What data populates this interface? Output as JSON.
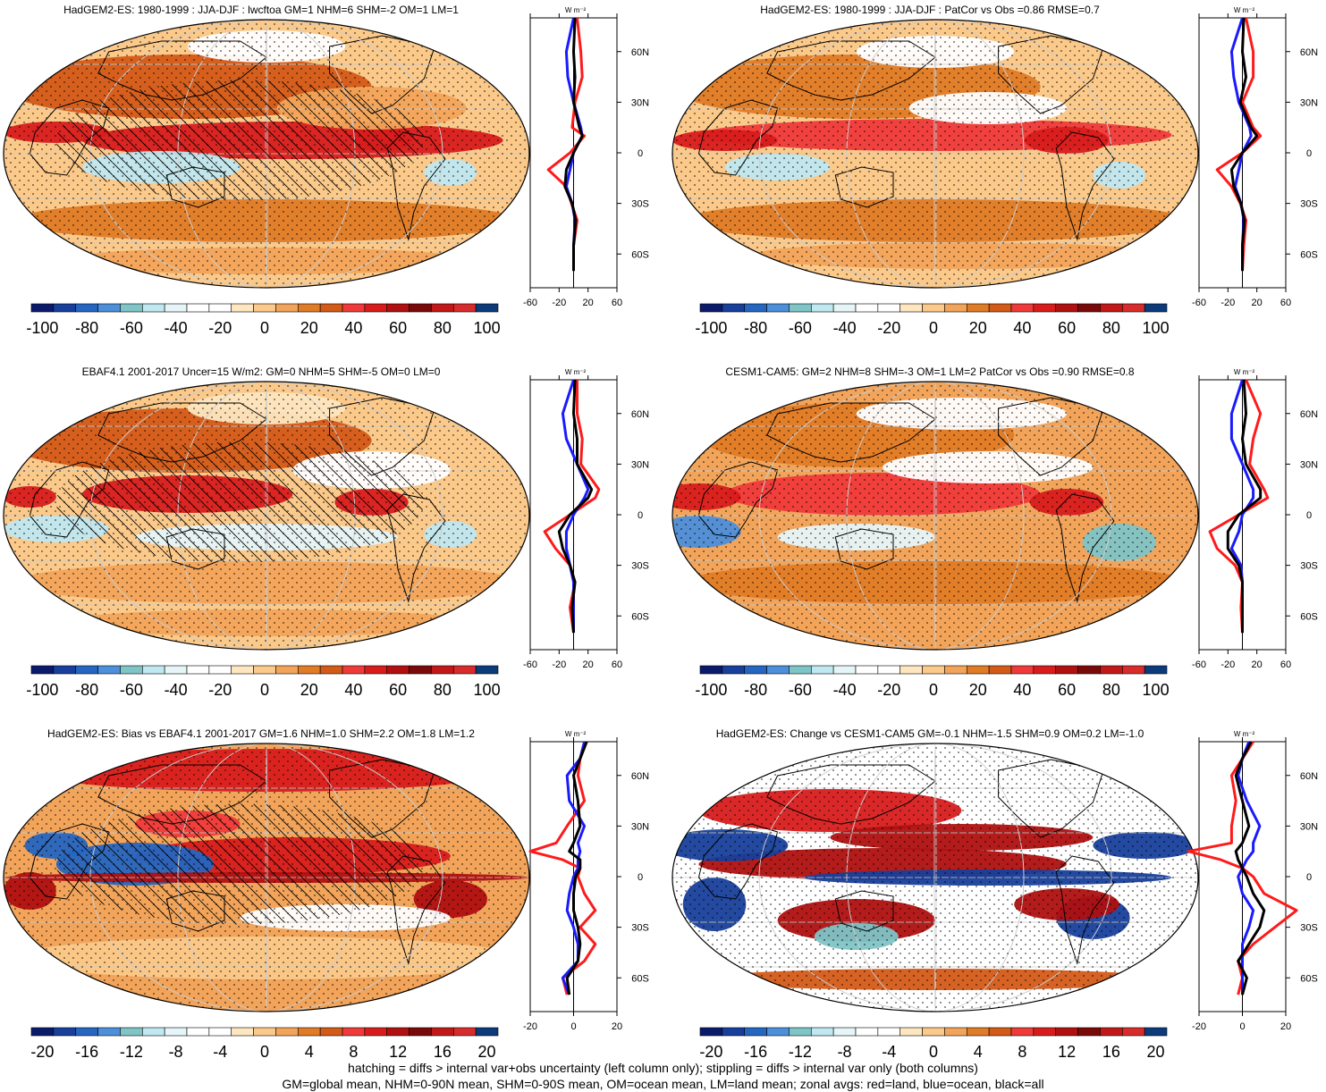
{
  "chart_data": [
    {
      "type": "heatmap",
      "title": "HadGEM2-ES: 1980-1999 : JJA-DJF : lwcftoa GM=1 NHM=6 SHM=-2 OM=1 LM=1",
      "colorbar_ticks": [
        "-100",
        "-80",
        "-60",
        "-40",
        "-20",
        "0",
        "20",
        "40",
        "60",
        "80",
        "100"
      ],
      "hatching": true,
      "zonal_avg": {
        "unit": "W m-2",
        "x_ticks": [
          "-60",
          "-20",
          "20",
          "60"
        ],
        "xlim": [
          -60,
          60
        ],
        "y_ticks": [
          "60N",
          "30N",
          "0",
          "30S",
          "60S"
        ],
        "series": [
          {
            "name": "red",
            "lat": [
              80,
              60,
              45,
              30,
              15,
              10,
              0,
              -10,
              -20,
              -30,
              -40,
              -55,
              -70
            ],
            "values": [
              5,
              10,
              12,
              2,
              -2,
              15,
              -5,
              -35,
              -10,
              -3,
              5,
              0,
              0
            ]
          },
          {
            "name": "blue",
            "lat": [
              80,
              60,
              45,
              30,
              15,
              10,
              0,
              -10,
              -20,
              -30,
              -40,
              -55,
              -70
            ],
            "values": [
              0,
              -10,
              -8,
              0,
              10,
              12,
              0,
              -5,
              -10,
              -2,
              2,
              0,
              0
            ]
          },
          {
            "name": "black",
            "lat": [
              80,
              60,
              45,
              30,
              15,
              10,
              0,
              -10,
              -20,
              -30,
              -40,
              -55,
              -70
            ],
            "values": [
              2,
              0,
              2,
              0,
              8,
              12,
              0,
              -10,
              -12,
              -2,
              3,
              0,
              0
            ]
          }
        ]
      }
    },
    {
      "type": "heatmap",
      "title": "HadGEM2-ES: 1980-1999 : JJA-DJF : PatCor vs Obs =0.86 RMSE=0.7",
      "colorbar_ticks": [
        "-100",
        "-80",
        "-60",
        "-40",
        "-20",
        "0",
        "20",
        "40",
        "60",
        "80",
        "100"
      ],
      "hatching": false,
      "zonal_avg": {
        "unit": "W m-2",
        "x_ticks": [
          "-60",
          "-20",
          "20",
          "60"
        ],
        "xlim": [
          -60,
          60
        ],
        "y_ticks": [
          "60N",
          "30N",
          "0",
          "30S",
          "60S"
        ],
        "series": [
          {
            "name": "red",
            "lat": [
              80,
              60,
              45,
              30,
              15,
              10,
              0,
              -10,
              -20,
              -30,
              -40,
              -55,
              -70
            ],
            "values": [
              5,
              15,
              15,
              0,
              15,
              25,
              0,
              -35,
              -15,
              -3,
              5,
              2,
              0
            ]
          },
          {
            "name": "blue",
            "lat": [
              80,
              60,
              45,
              30,
              15,
              10,
              0,
              -10,
              -20,
              -30,
              -40,
              -55,
              -70
            ],
            "values": [
              0,
              -15,
              -12,
              -5,
              10,
              12,
              0,
              -5,
              -10,
              -2,
              2,
              0,
              0
            ]
          },
          {
            "name": "black",
            "lat": [
              80,
              60,
              45,
              30,
              15,
              10,
              0,
              -10,
              -20,
              -30,
              -40,
              -55,
              -70
            ],
            "values": [
              2,
              0,
              5,
              -3,
              12,
              20,
              0,
              -15,
              -12,
              -2,
              3,
              0,
              0
            ]
          }
        ]
      }
    },
    {
      "type": "heatmap",
      "title": "EBAF4.1 2001-2017 Uncer=15 W/m2: GM=0 NHM=5 SHM=-5 OM=0 LM=0",
      "colorbar_ticks": [
        "-100",
        "-80",
        "-60",
        "-40",
        "-20",
        "0",
        "20",
        "40",
        "60",
        "80",
        "100"
      ],
      "hatching": true,
      "zonal_avg": {
        "unit": "W m-2",
        "x_ticks": [
          "-60",
          "-20",
          "20",
          "60"
        ],
        "xlim": [
          -60,
          60
        ],
        "y_ticks": [
          "60N",
          "30N",
          "0",
          "30S",
          "60S"
        ],
        "series": [
          {
            "name": "red",
            "lat": [
              80,
              60,
              45,
              30,
              15,
              10,
              0,
              -10,
              -20,
              -30,
              -40,
              -55,
              -70
            ],
            "values": [
              5,
              5,
              12,
              10,
              35,
              30,
              -5,
              -40,
              -25,
              -5,
              2,
              -5,
              0
            ]
          },
          {
            "name": "blue",
            "lat": [
              80,
              60,
              45,
              30,
              15,
              10,
              0,
              -10,
              -20,
              -30,
              -40,
              -55,
              -70
            ],
            "values": [
              0,
              -15,
              -10,
              5,
              20,
              15,
              0,
              -10,
              -10,
              -5,
              0,
              0,
              0
            ]
          },
          {
            "name": "black",
            "lat": [
              80,
              60,
              45,
              30,
              15,
              10,
              0,
              -10,
              -20,
              -30,
              -40,
              -55,
              -70
            ],
            "values": [
              2,
              0,
              5,
              5,
              25,
              20,
              -5,
              -20,
              -15,
              -5,
              2,
              -2,
              0
            ]
          }
        ]
      }
    },
    {
      "type": "heatmap",
      "title": "CESM1-CAM5: GM=2 NHM=8 SHM=-3 OM=1 LM=2 PatCor vs Obs =0.90 RMSE=0.8",
      "colorbar_ticks": [
        "-100",
        "-80",
        "-60",
        "-40",
        "-20",
        "0",
        "20",
        "40",
        "60",
        "80",
        "100"
      ],
      "hatching": false,
      "zonal_avg": {
        "unit": "W m-2",
        "x_ticks": [
          "-60",
          "-20",
          "20",
          "60"
        ],
        "xlim": [
          -60,
          60
        ],
        "y_ticks": [
          "60N",
          "30N",
          "0",
          "30S",
          "60S"
        ],
        "series": [
          {
            "name": "red",
            "lat": [
              80,
              60,
              45,
              30,
              15,
              10,
              0,
              -10,
              -20,
              -30,
              -40,
              -55,
              -70
            ],
            "values": [
              5,
              25,
              15,
              10,
              30,
              35,
              -5,
              -45,
              -35,
              -10,
              0,
              -2,
              0
            ]
          },
          {
            "name": "blue",
            "lat": [
              80,
              60,
              45,
              30,
              15,
              10,
              0,
              -10,
              -20,
              -30,
              -40,
              -55,
              -70
            ],
            "values": [
              0,
              -15,
              -15,
              0,
              15,
              15,
              0,
              -5,
              -15,
              -2,
              0,
              0,
              0
            ]
          },
          {
            "name": "black",
            "lat": [
              80,
              60,
              45,
              30,
              15,
              10,
              0,
              -10,
              -20,
              -30,
              -40,
              -55,
              -70
            ],
            "values": [
              2,
              5,
              0,
              5,
              25,
              25,
              -5,
              -20,
              -20,
              -5,
              0,
              0,
              0
            ]
          }
        ]
      }
    },
    {
      "type": "heatmap",
      "title": "HadGEM2-ES: Bias vs EBAF4.1 2001-2017 GM=1.6 NHM=1.0 SHM=2.2 OM=1.8 LM=1.2",
      "colorbar_ticks": [
        "-20",
        "-16",
        "-12",
        "-8",
        "-4",
        "0",
        "4",
        "8",
        "12",
        "16",
        "20"
      ],
      "hatching": true,
      "zonal_avg": {
        "unit": "W m-2",
        "x_ticks": [
          "-20",
          "0",
          "20"
        ],
        "xlim": [
          -20,
          20
        ],
        "y_ticks": [
          "60N",
          "30N",
          "0",
          "30S",
          "60S"
        ],
        "series": [
          {
            "name": "red",
            "lat": [
              80,
              70,
              60,
              45,
              30,
              20,
              15,
              10,
              5,
              0,
              -10,
              -20,
              -30,
              -40,
              -50,
              -60,
              -70
            ],
            "values": [
              6,
              3,
              2,
              5,
              -3,
              -8,
              -20,
              -5,
              3,
              2,
              5,
              10,
              3,
              10,
              5,
              -5,
              -3
            ]
          },
          {
            "name": "blue",
            "lat": [
              80,
              70,
              60,
              45,
              30,
              20,
              15,
              10,
              5,
              0,
              -10,
              -20,
              -30,
              -40,
              -50,
              -60,
              -70
            ],
            "values": [
              5,
              3,
              -3,
              -2,
              5,
              2,
              3,
              2,
              2,
              0,
              -2,
              -3,
              0,
              2,
              2,
              -5,
              -2
            ]
          },
          {
            "name": "black",
            "lat": [
              80,
              70,
              60,
              45,
              30,
              20,
              15,
              10,
              5,
              0,
              -10,
              -20,
              -30,
              -40,
              -50,
              -60,
              -70
            ],
            "values": [
              6,
              3,
              0,
              2,
              3,
              0,
              -2,
              3,
              3,
              1,
              0,
              0,
              2,
              3,
              2,
              -3,
              -2
            ]
          }
        ]
      }
    },
    {
      "type": "heatmap",
      "title": "HadGEM2-ES: Change vs CESM1-CAM5 GM=-0.1 NHM=-1.5 SHM=0.9 OM=0.2 LM=-1.0",
      "colorbar_ticks": [
        "-20",
        "-16",
        "-12",
        "-8",
        "-4",
        "0",
        "4",
        "8",
        "12",
        "16",
        "20"
      ],
      "hatching": false,
      "zonal_avg": {
        "unit": "W m-2",
        "x_ticks": [
          "-20",
          "0",
          "20"
        ],
        "xlim": [
          -20,
          20
        ],
        "y_ticks": [
          "60N",
          "30N",
          "0",
          "30S",
          "60S"
        ],
        "series": [
          {
            "name": "red",
            "lat": [
              80,
              70,
              60,
              45,
              30,
              20,
              15,
              10,
              5,
              0,
              -10,
              -20,
              -30,
              -40,
              -50,
              -60,
              -70
            ],
            "values": [
              5,
              0,
              -5,
              -3,
              -5,
              -5,
              -25,
              -10,
              0,
              5,
              10,
              25,
              15,
              5,
              -2,
              0,
              -2
            ]
          },
          {
            "name": "blue",
            "lat": [
              80,
              70,
              60,
              45,
              30,
              20,
              15,
              10,
              5,
              0,
              -10,
              -20,
              -30,
              -40,
              -50,
              -60,
              -70
            ],
            "values": [
              3,
              0,
              -2,
              2,
              8,
              5,
              5,
              2,
              0,
              -2,
              0,
              5,
              3,
              0,
              0,
              0,
              0
            ]
          },
          {
            "name": "black",
            "lat": [
              80,
              70,
              60,
              45,
              30,
              20,
              15,
              10,
              5,
              0,
              -10,
              -20,
              -30,
              -40,
              -50,
              -60,
              -70
            ],
            "values": [
              4,
              0,
              -3,
              0,
              3,
              0,
              -3,
              -2,
              0,
              2,
              5,
              10,
              8,
              3,
              -2,
              2,
              0
            ]
          }
        ]
      }
    }
  ],
  "colormap": [
    "#0b1b6b",
    "#173f9b",
    "#2566c2",
    "#4c8fdb",
    "#7fc4c6",
    "#bfe8f0",
    "#e6f6f8",
    "#ffffff",
    "#ffffff",
    "#fde6c0",
    "#fbc98a",
    "#f2a45a",
    "#e07b26",
    "#d45a18",
    "#f03a3a",
    "#d81c1c",
    "#b01010",
    "#7a0a0a",
    "#c21818",
    "#d82c2c",
    "#0b3b7a"
  ],
  "footer": {
    "line1": "hatching = diffs > internal var+obs uncertainty (left column only); stippling = diffs > internal var only (both columns)",
    "line2": "GM=global mean, NHM=0-90N mean, SHM=0-90S mean, OM=ocean mean, LM=land mean; zonal avgs: red=land, blue=ocean, black=all"
  }
}
